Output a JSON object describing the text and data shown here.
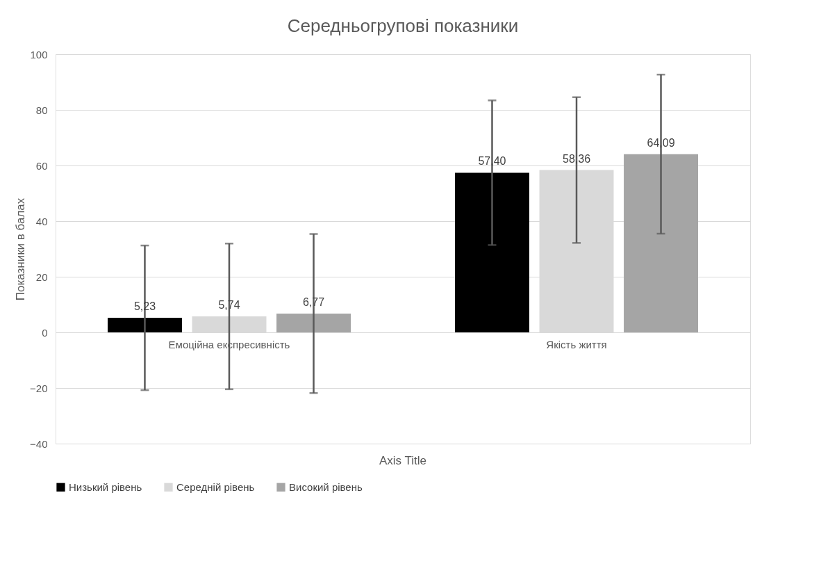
{
  "chart_data": {
    "type": "bar",
    "title": "Середньогрупові показники",
    "xlabel": "Axis Title",
    "ylabel": "Показники в балах",
    "categories": [
      "Емоційна експресивність",
      "Якість життя"
    ],
    "series": [
      {
        "name": "Низький рівень",
        "color": "#000000",
        "values": [
          5.23,
          57.4
        ],
        "errors": [
          26,
          26
        ],
        "value_labels": [
          "5,23",
          "57,40"
        ]
      },
      {
        "name": "Середній рівень",
        "color": "#d9d9d9",
        "values": [
          5.74,
          58.36
        ],
        "errors": [
          26.2,
          26.2
        ],
        "value_labels": [
          "5,74",
          "58,36"
        ]
      },
      {
        "name": "Високий рівень",
        "color": "#a5a5a5",
        "values": [
          6.77,
          64.09
        ],
        "errors": [
          28.6,
          28.6
        ],
        "value_labels": [
          "6,77",
          "64,09"
        ]
      }
    ],
    "ylim": [
      -40,
      100
    ],
    "yticks": [
      -40,
      -20,
      0,
      20,
      40,
      60,
      80,
      100
    ],
    "grid": "y",
    "legend": "bottom"
  }
}
